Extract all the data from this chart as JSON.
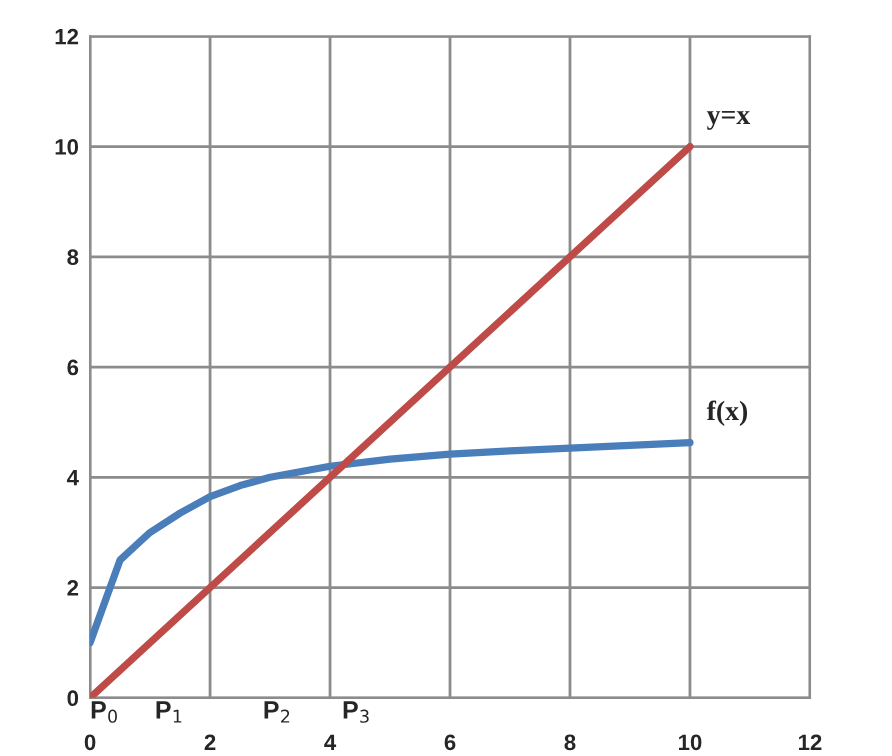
{
  "chart_data": {
    "type": "line",
    "series": [
      {
        "name": "f(x)",
        "color": "#4a7ebb",
        "x": [
          0,
          0.3,
          0.5,
          0.8,
          1,
          1.5,
          2,
          2.5,
          3,
          3.5,
          4,
          5,
          6,
          7,
          8,
          9,
          10
        ],
        "values": [
          1,
          1.9,
          2.5,
          2.8,
          3.0,
          3.35,
          3.65,
          3.85,
          4.0,
          4.1,
          4.2,
          4.33,
          4.42,
          4.48,
          4.53,
          4.58,
          4.63
        ]
      },
      {
        "name": "y=x",
        "color": "#be4b48",
        "x": [
          0,
          10
        ],
        "values": [
          0,
          10
        ]
      }
    ],
    "xlim": [
      0,
      12
    ],
    "ylim": [
      0,
      12
    ],
    "xticks": [
      0,
      2,
      4,
      6,
      8,
      10,
      12
    ],
    "yticks": [
      0,
      2,
      4,
      6,
      8,
      10,
      12
    ],
    "grid": true,
    "legend": false,
    "marker": "none",
    "line_style": "solid",
    "annotations": [
      "P$_{0}$",
      "P$_{1}$",
      "P$_{2}$",
      "P$_{3}$"
    ]
  }
}
